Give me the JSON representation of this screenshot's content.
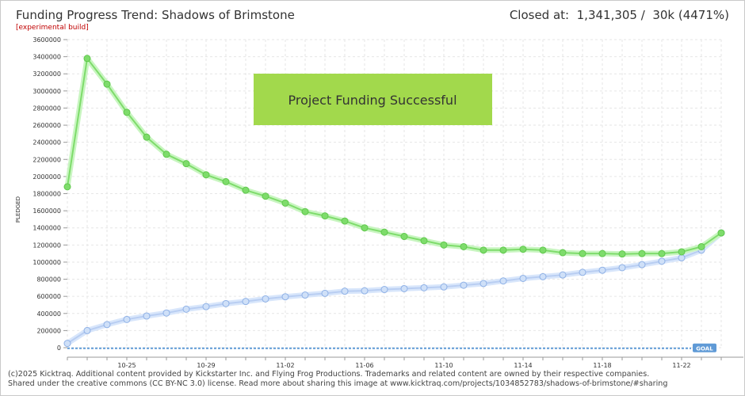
{
  "header": {
    "title": "Funding Progress Trend: Shadows of Brimstone",
    "subtitle": "[experimental build]",
    "closed_text": "Closed at:  1,341,305 /  30k (4471%)"
  },
  "footer": {
    "line1": "(c)2025 Kicktraq. Additional content provided by Kickstarter Inc. and Flying Frog Productions. Trademarks and related content are owned by their respective companies.",
    "line2": "Shared under the creative commons (CC BY-NC 3.0) license. Read more about sharing this image at www.kicktraq.com/projects/1034852783/shadows-of-brimstone/#sharing"
  },
  "chart_data": {
    "type": "line",
    "ylabel": "PLEDGED",
    "ylim": [
      0,
      3600000
    ],
    "yticks": [
      0,
      200000,
      400000,
      600000,
      800000,
      1000000,
      1200000,
      1400000,
      1600000,
      1800000,
      2000000,
      2200000,
      2400000,
      2600000,
      2800000,
      3000000,
      3200000,
      3400000,
      3600000
    ],
    "x_tick_labels": [
      "10-25",
      "10-29",
      "11-02",
      "11-06",
      "11-10",
      "11-14",
      "11-18",
      "11-22"
    ],
    "x_tick_index": [
      3,
      7,
      11,
      15,
      19,
      23,
      27,
      31
    ],
    "annotation": "Project Funding Successful",
    "goal_label": "GOAL",
    "goal": 30000,
    "colors": {
      "trend": "#7edc6b",
      "trend_band": "#c8f5c0",
      "pledged": "#b9cef2",
      "pledged_band": "#d8e6fb",
      "goal": "#5f9ad6",
      "banner": "#a2d94c"
    },
    "series": [
      {
        "role": "trend",
        "values": [
          1880000,
          3380000,
          3080000,
          2750000,
          2460000,
          2260000,
          2150000,
          2020000,
          1940000,
          1840000,
          1770000,
          1690000,
          1590000,
          1540000,
          1480000,
          1400000,
          1350000,
          1300000,
          1250000,
          1200000,
          1180000,
          1140000,
          1140000,
          1150000,
          1140000,
          1110000,
          1100000,
          1100000,
          1095000,
          1100000,
          1100000,
          1120000,
          1180000,
          1341305
        ]
      },
      {
        "role": "pledged",
        "values": [
          50000,
          200000,
          270000,
          330000,
          370000,
          405000,
          450000,
          480000,
          515000,
          540000,
          570000,
          595000,
          615000,
          635000,
          660000,
          665000,
          680000,
          690000,
          700000,
          710000,
          730000,
          750000,
          780000,
          810000,
          830000,
          850000,
          880000,
          905000,
          935000,
          970000,
          1010000,
          1050000,
          1140000,
          1341305
        ]
      }
    ]
  }
}
